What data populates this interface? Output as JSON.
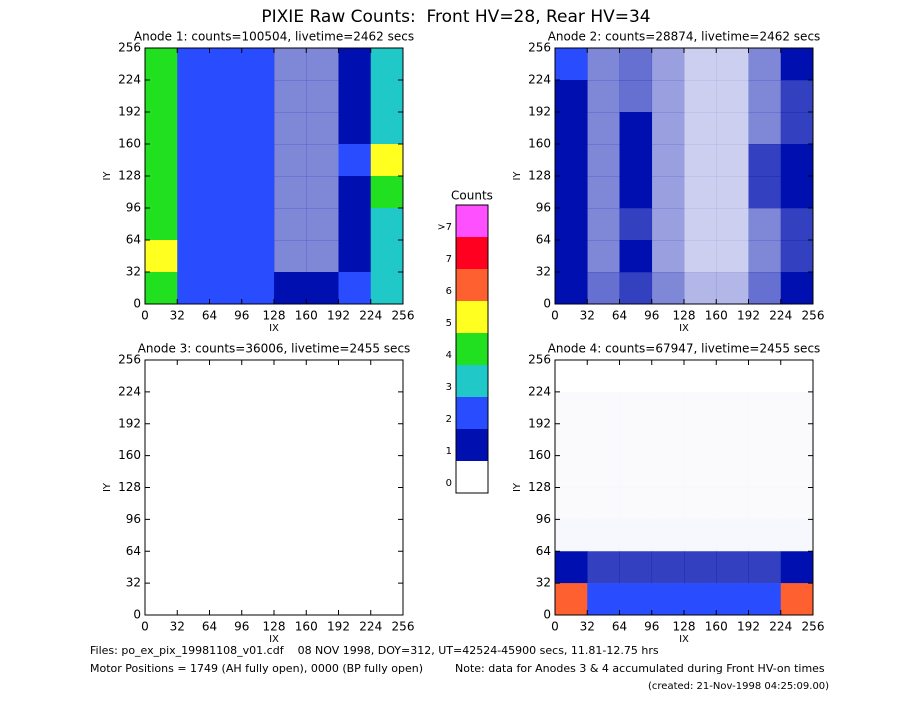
{
  "title": "PIXIE Raw Counts:  Front HV=28, Rear HV=34",
  "chart_data": [
    {
      "type": "heatmap",
      "title": "Anode 1: counts=100504, livetime=2462 secs",
      "xlabel": "IX",
      "ylabel": "IY",
      "xlim": [
        0,
        256
      ],
      "ylim": [
        0,
        256
      ],
      "xticks": [
        0,
        32,
        64,
        96,
        128,
        160,
        192,
        224,
        256
      ],
      "yticks": [
        0,
        32,
        64,
        96,
        128,
        160,
        192,
        224,
        256
      ],
      "z": [
        [
          4,
          2,
          2,
          1.5,
          0.5,
          0.5,
          1,
          3
        ],
        [
          4,
          2,
          2,
          1.5,
          0.5,
          0.5,
          1,
          3
        ],
        [
          4,
          2,
          1.5,
          1.5,
          0.5,
          0.5,
          1,
          3
        ],
        [
          4,
          2,
          2,
          1.5,
          0.5,
          0.5,
          1.5,
          5
        ],
        [
          4,
          2,
          2,
          1.5,
          0.5,
          0.5,
          1,
          4
        ],
        [
          4,
          2,
          2,
          1.5,
          0.5,
          0.5,
          1,
          3
        ],
        [
          5,
          2,
          2,
          1.5,
          0.5,
          0.5,
          1,
          3
        ],
        [
          4,
          2,
          1.5,
          1.5,
          1,
          1,
          1.5,
          3
        ]
      ]
    },
    {
      "type": "heatmap",
      "title": "Anode 2: counts=28874, livetime=2462 secs",
      "xlabel": "IX",
      "ylabel": "IY",
      "xlim": [
        0,
        256
      ],
      "ylim": [
        0,
        256
      ],
      "xticks": [
        0,
        32,
        64,
        96,
        128,
        160,
        192,
        224,
        256
      ],
      "yticks": [
        0,
        32,
        64,
        96,
        128,
        160,
        192,
        224,
        256
      ],
      "z": [
        [
          1.5,
          0.5,
          0.6,
          0.4,
          0.2,
          0.2,
          0.5,
          1
        ],
        [
          1.2,
          0.5,
          0.6,
          0.4,
          0.2,
          0.2,
          0.5,
          0.8
        ],
        [
          1,
          0.5,
          1,
          0.4,
          0.2,
          0.2,
          0.5,
          0.8
        ],
        [
          1,
          0.5,
          1.2,
          0.4,
          0.2,
          0.2,
          0.8,
          1.2
        ],
        [
          1,
          0.5,
          1.2,
          0.4,
          0.2,
          0.2,
          0.8,
          1
        ],
        [
          1,
          0.5,
          0.8,
          0.4,
          0.2,
          0.2,
          0.5,
          0.8
        ],
        [
          1.2,
          0.5,
          1,
          0.4,
          0.2,
          0.2,
          0.5,
          0.8
        ],
        [
          1.2,
          0.6,
          0.8,
          0.5,
          0.3,
          0.3,
          0.6,
          1
        ]
      ]
    },
    {
      "type": "heatmap",
      "title": "Anode 3: counts=36006, livetime=2455 secs",
      "xlabel": "IX",
      "ylabel": "IY",
      "xlim": [
        0,
        256
      ],
      "ylim": [
        0,
        256
      ],
      "xticks": [
        0,
        32,
        64,
        96,
        128,
        160,
        192,
        224,
        256
      ],
      "yticks": [
        0,
        32,
        64,
        96,
        128,
        160,
        192,
        224,
        256
      ],
      "z": [
        [
          0,
          0,
          0,
          0,
          0,
          0,
          0,
          0
        ],
        [
          0,
          0,
          0,
          0,
          0,
          0,
          0,
          0
        ],
        [
          0,
          0,
          0,
          0,
          0,
          0,
          0,
          0
        ],
        [
          0,
          0,
          0,
          0,
          0,
          0,
          0,
          0
        ],
        [
          0,
          0,
          0,
          0,
          0,
          0,
          0,
          0
        ],
        [
          0,
          0,
          0,
          0,
          0,
          0,
          0,
          0
        ],
        [
          0,
          0,
          0,
          0,
          0,
          0,
          0,
          0
        ],
        [
          0,
          0,
          0,
          0,
          0,
          0,
          0,
          0
        ]
      ]
    },
    {
      "type": "heatmap",
      "title": "Anode 4: counts=67947, livetime=2455 secs",
      "xlabel": "IX",
      "ylabel": "IY",
      "xlim": [
        0,
        256
      ],
      "ylim": [
        0,
        256
      ],
      "xticks": [
        0,
        32,
        64,
        96,
        128,
        160,
        192,
        224,
        256
      ],
      "yticks": [
        0,
        32,
        64,
        96,
        128,
        160,
        192,
        224,
        256
      ],
      "z": [
        [
          0,
          0,
          0,
          0,
          0,
          0,
          0,
          0
        ],
        [
          0.02,
          0.02,
          0.02,
          0.02,
          0.02,
          0.02,
          0.02,
          0.02
        ],
        [
          0.02,
          0.02,
          0.02,
          0.02,
          0.02,
          0.02,
          0.02,
          0.02
        ],
        [
          0.02,
          0.02,
          0.02,
          0.02,
          0.02,
          0.02,
          0.02,
          0.02
        ],
        [
          0.02,
          0.02,
          0.02,
          0.02,
          0.02,
          0.02,
          0.02,
          0.02
        ],
        [
          0.03,
          0.03,
          0.03,
          0.03,
          0.03,
          0.03,
          0.03,
          0.03
        ],
        [
          1.2,
          0.8,
          0.8,
          0.8,
          0.8,
          0.8,
          0.8,
          1.2
        ],
        [
          6,
          2,
          2,
          2,
          2,
          2,
          2,
          6
        ]
      ]
    }
  ],
  "colorbar": {
    "title": "Counts",
    "ticks": [
      0,
      1,
      2,
      3,
      4,
      5,
      6,
      7,
      {
        "value": 8,
        "label": ">7"
      }
    ],
    "colors": [
      "#ffffff",
      "#0010b0",
      "#2a4cff",
      "#20c8c8",
      "#20e020",
      "#ffff20",
      "#ff6030",
      "#ff0020",
      "#ff50ff"
    ]
  },
  "footer": {
    "files": "Files: po_ex_pix_19981108_v01.cdf    08 NOV 1998, DOY=312, UT=42524-45900 secs, 11.81-12.75 hrs",
    "motor": "Motor Positions = 1749 (AH fully open), 0000 (BP fully open)",
    "note": "Note: data for Anodes 3 & 4 accumulated during Front HV-on times",
    "created": "(created: 21-Nov-1998 04:25:09.00)"
  }
}
